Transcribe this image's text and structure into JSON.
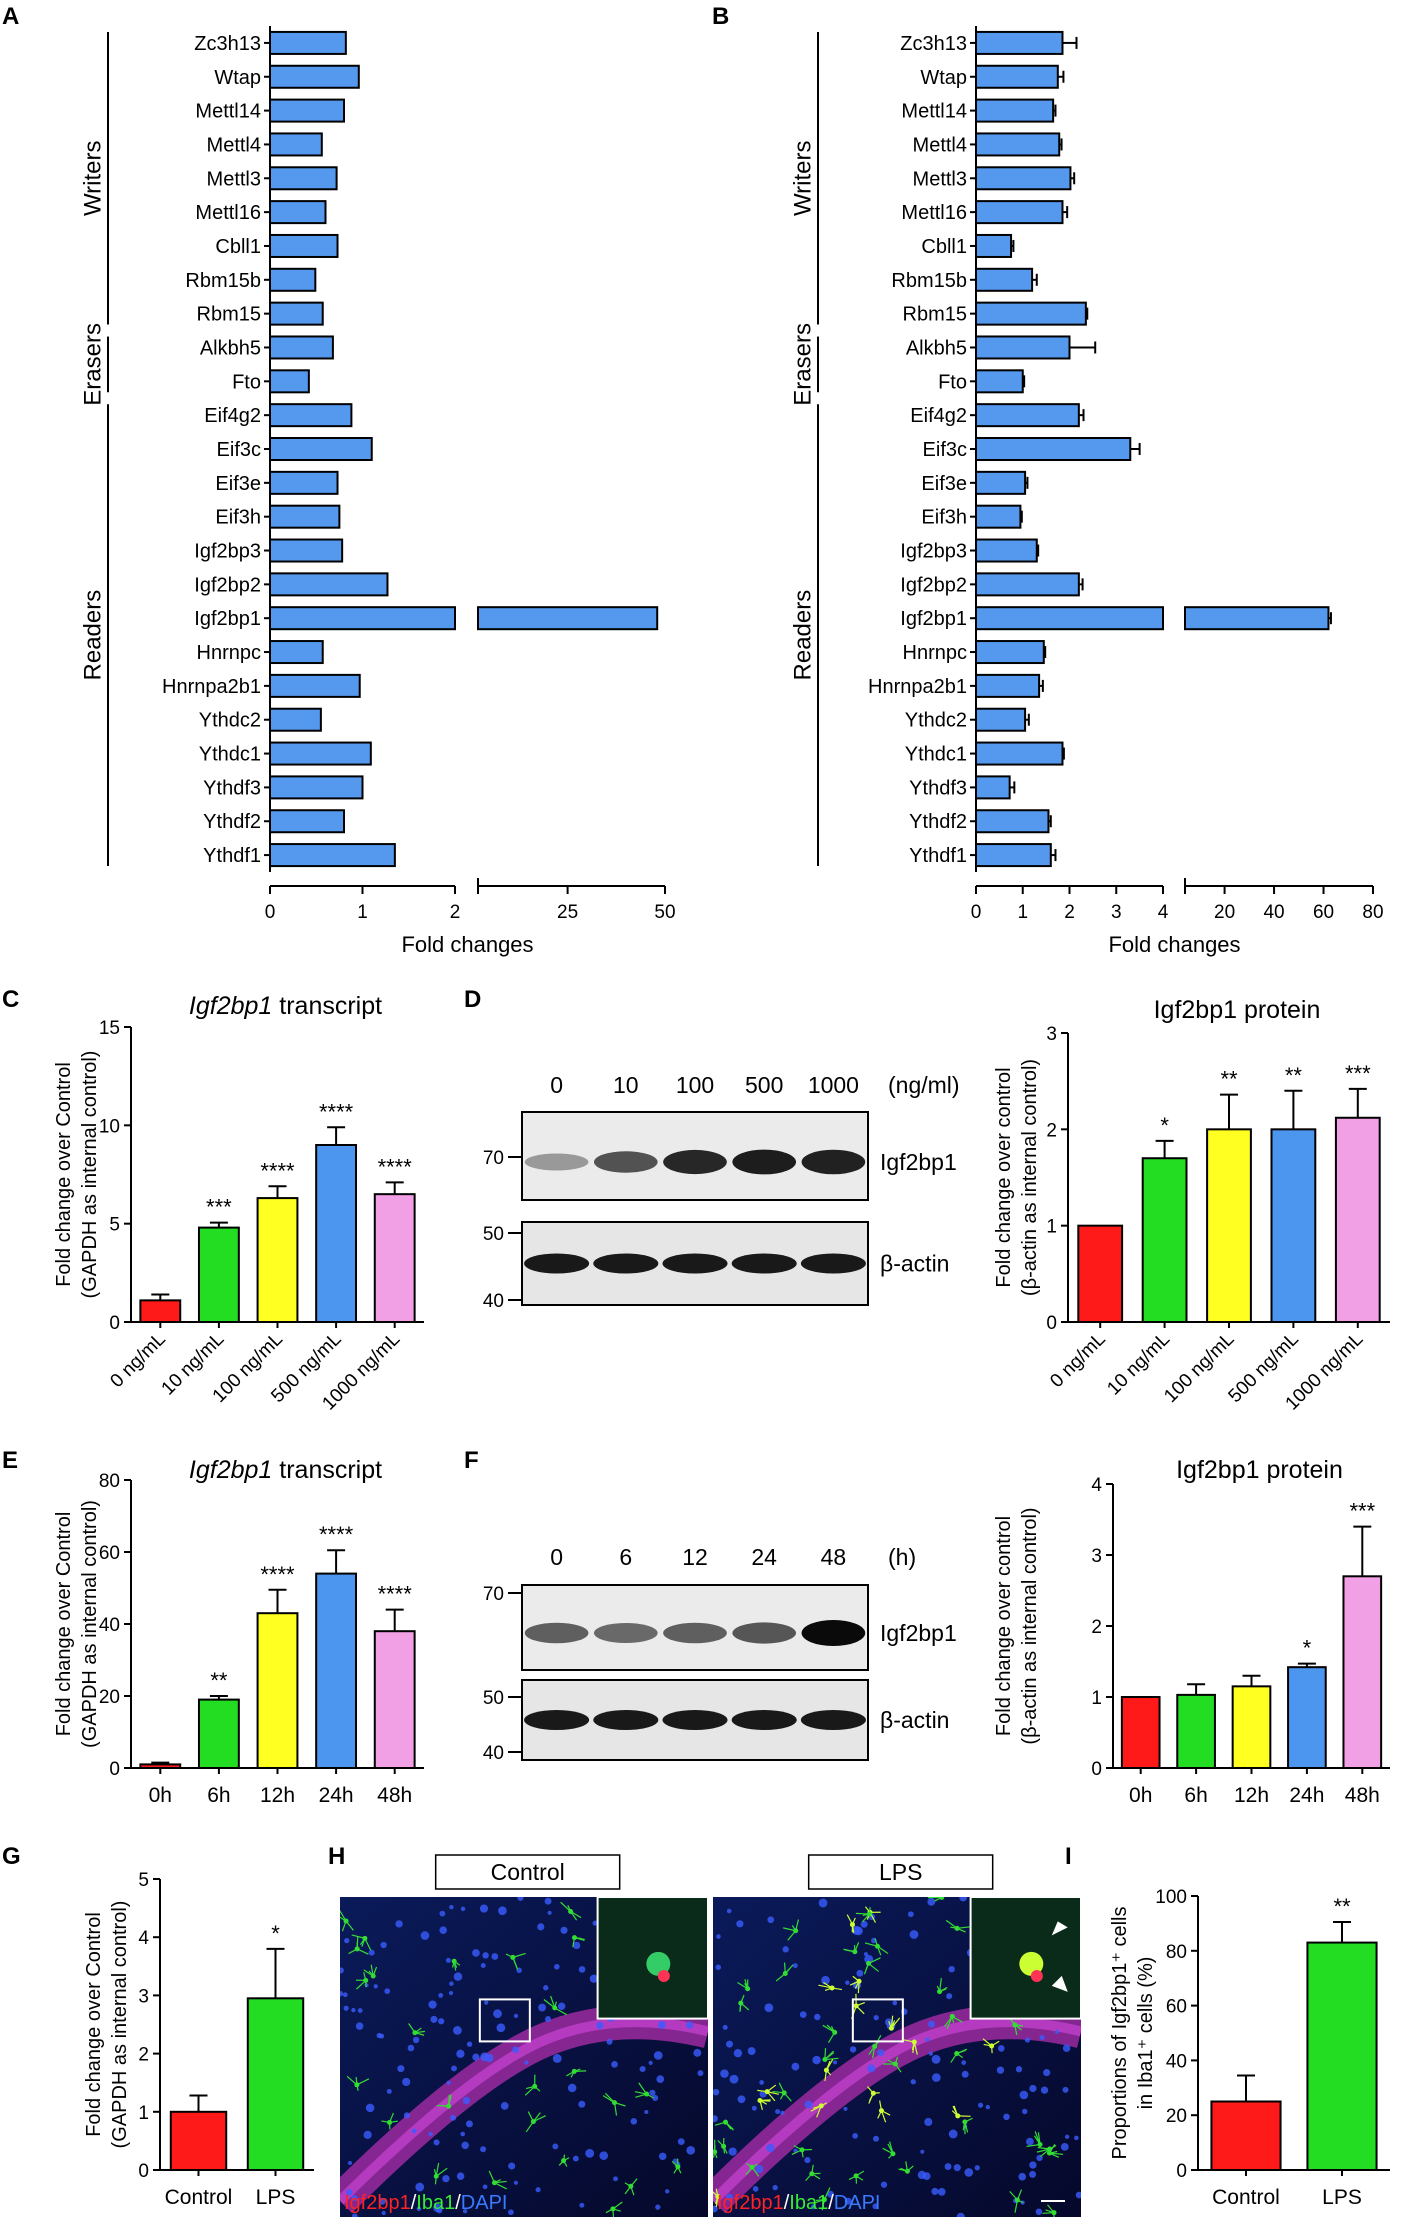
{
  "colors": {
    "blue": "#5599ee",
    "red": "#ff1a1a",
    "green": "#22dd22",
    "yellow": "#ffff22",
    "lightblue": "#4d96f0",
    "pink": "#f2a0e6",
    "ink": "#000000"
  },
  "panels": {
    "A": "A",
    "B": "B",
    "C": "C",
    "D": "D",
    "E": "E",
    "F": "F",
    "G": "G",
    "H": "H",
    "I": "I"
  },
  "common": {
    "genes": [
      "Zc3h13",
      "Wtap",
      "Mettl14",
      "Mettl4",
      "Mettl3",
      "Mettl16",
      "Cbll1",
      "Rbm15b",
      "Rbm15",
      "Alkbh5",
      "Fto",
      "Eif4g2",
      "Eif3c",
      "Eif3e",
      "Eif3h",
      "Igf2bp3",
      "Igf2bp2",
      "Igf2bp1",
      "Hnrnpc",
      "Hnrnpa2b1",
      "Ythdc2",
      "Ythdc1",
      "Ythdf3",
      "Ythdf2",
      "Ythdf1"
    ],
    "groups": [
      "Writers",
      "Erasers",
      "Readers"
    ],
    "fold_changes": "Fold changes",
    "gapdh_ylabel_1": "Fold change over Control",
    "gapdh_ylabel_2": "(GAPDH as internal control)",
    "actin_ylabel_1": "Fold change over control",
    "actin_ylabel_2": "(β-actin as internal control)",
    "transcript_gene": "Igf2bp1",
    "transcript_word": "transcript",
    "protein_title": "Igf2bp1 protein"
  },
  "chart_data": [
    {
      "id": "A",
      "type": "bar",
      "orientation": "horizontal",
      "broken_axis": true,
      "categories": [
        "Zc3h13",
        "Wtap",
        "Mettl14",
        "Mettl4",
        "Mettl3",
        "Mettl16",
        "Cbll1",
        "Rbm15b",
        "Rbm15",
        "Alkbh5",
        "Fto",
        "Eif4g2",
        "Eif3c",
        "Eif3e",
        "Eif3h",
        "Igf2bp3",
        "Igf2bp2",
        "Igf2bp1",
        "Hnrnpc",
        "Hnrnpa2b1",
        "Ythdc2",
        "Ythdc1",
        "Ythdf3",
        "Ythdf2",
        "Ythdf1"
      ],
      "values": [
        0.82,
        0.96,
        0.8,
        0.56,
        0.72,
        0.6,
        0.73,
        0.49,
        0.57,
        0.68,
        0.42,
        0.88,
        1.1,
        0.73,
        0.75,
        0.78,
        1.27,
        48,
        0.57,
        0.97,
        0.55,
        1.09,
        1.0,
        0.8,
        1.35
      ],
      "xlabel": "Fold changes",
      "axis_segment_1": {
        "range": [
          0,
          2
        ],
        "ticks": [
          0,
          1,
          2
        ]
      },
      "axis_segment_2": {
        "range": [
          2,
          50
        ],
        "ticks": [
          25,
          50
        ]
      }
    },
    {
      "id": "B",
      "type": "bar",
      "orientation": "horizontal",
      "broken_axis": true,
      "categories": [
        "Zc3h13",
        "Wtap",
        "Mettl14",
        "Mettl4",
        "Mettl3",
        "Mettl16",
        "Cbll1",
        "Rbm15b",
        "Rbm15",
        "Alkbh5",
        "Fto",
        "Eif4g2",
        "Eif3c",
        "Eif3e",
        "Eif3h",
        "Igf2bp3",
        "Igf2bp2",
        "Igf2bp1",
        "Hnrnpc",
        "Hnrnpa2b1",
        "Ythdc2",
        "Ythdc1",
        "Ythdf3",
        "Ythdf2",
        "Ythdf1"
      ],
      "values": [
        1.85,
        1.75,
        1.65,
        1.78,
        2.02,
        1.85,
        0.75,
        1.2,
        2.35,
        2.0,
        1.0,
        2.2,
        3.3,
        1.05,
        0.95,
        1.3,
        2.2,
        62,
        1.45,
        1.35,
        1.05,
        1.85,
        0.72,
        1.55,
        1.6
      ],
      "errors": [
        0.3,
        0.12,
        0.05,
        0.05,
        0.08,
        0.1,
        0.05,
        0.1,
        0.03,
        0.55,
        0.03,
        0.1,
        0.2,
        0.05,
        0.03,
        0.03,
        0.08,
        1.0,
        0.03,
        0.08,
        0.08,
        0.03,
        0.1,
        0.05,
        0.1
      ],
      "xlabel": "Fold changes",
      "axis_segment_1": {
        "range": [
          0,
          4
        ],
        "ticks": [
          0,
          1,
          2,
          3,
          4
        ]
      },
      "axis_segment_2": {
        "range": [
          4,
          80
        ],
        "ticks": [
          20,
          40,
          60,
          80
        ]
      }
    },
    {
      "id": "C",
      "type": "bar",
      "title_italic": "Igf2bp1",
      "title_rest": "transcript",
      "categories": [
        "0 ng/mL",
        "10 ng/mL",
        "100 ng/mL",
        "500 ng/mL",
        "1000 ng/mL"
      ],
      "values": [
        1.1,
        4.8,
        6.3,
        9.0,
        6.5
      ],
      "errors": [
        0.3,
        0.25,
        0.6,
        0.9,
        0.6
      ],
      "significance": [
        "",
        "***",
        "****",
        "****",
        "****"
      ],
      "ylabel": [
        "Fold change over Control",
        "(GAPDH as internal control)"
      ],
      "ylim": [
        0,
        15
      ],
      "yticks": [
        0,
        5,
        10,
        15
      ]
    },
    {
      "id": "D",
      "type": "bar",
      "title": "Igf2bp1 protein",
      "categories": [
        "0 ng/mL",
        "10 ng/mL",
        "100 ng/mL",
        "500 ng/mL",
        "1000 ng/mL"
      ],
      "values": [
        1.0,
        1.7,
        2.0,
        2.0,
        2.12
      ],
      "errors": [
        0,
        0.18,
        0.36,
        0.4,
        0.3
      ],
      "significance": [
        "",
        "*",
        "**",
        "**",
        "***"
      ],
      "ylabel": [
        "Fold change over control",
        "(β-actin as internal control)"
      ],
      "ylim": [
        0,
        3
      ],
      "yticks": [
        0,
        1,
        2,
        3
      ]
    },
    {
      "id": "E",
      "type": "bar",
      "title_italic": "Igf2bp1",
      "title_rest": "transcript",
      "categories": [
        "0h",
        "6h",
        "12h",
        "24h",
        "48h"
      ],
      "values": [
        1.0,
        19.0,
        43.0,
        54.0,
        38.0
      ],
      "errors": [
        0.5,
        1.0,
        6.5,
        6.5,
        6.0
      ],
      "significance": [
        "",
        "**",
        "****",
        "****",
        "****"
      ],
      "ylabel": [
        "Fold change over Control",
        "(GAPDH as internal control)"
      ],
      "ylim": [
        0,
        80
      ],
      "yticks": [
        0,
        20,
        40,
        60,
        80
      ]
    },
    {
      "id": "F",
      "type": "bar",
      "title": "Igf2bp1 protein",
      "categories": [
        "0h",
        "6h",
        "12h",
        "24h",
        "48h"
      ],
      "values": [
        1.0,
        1.03,
        1.15,
        1.42,
        2.7
      ],
      "errors": [
        0,
        0.15,
        0.15,
        0.05,
        0.7
      ],
      "significance": [
        "",
        "",
        "",
        "*",
        "***"
      ],
      "ylabel": [
        "Fold change over control",
        "(β-actin as internal control)"
      ],
      "ylim": [
        0,
        4
      ],
      "yticks": [
        0,
        1,
        2,
        3,
        4
      ]
    },
    {
      "id": "G",
      "type": "bar",
      "categories": [
        "Control",
        "LPS"
      ],
      "values": [
        1.0,
        2.95
      ],
      "errors": [
        0.28,
        0.85
      ],
      "significance": [
        "",
        "*"
      ],
      "ylabel": [
        "Fold change over Control",
        "(GAPDH as internal control)"
      ],
      "ylim": [
        0,
        5
      ],
      "yticks": [
        0,
        1,
        2,
        3,
        4,
        5
      ]
    },
    {
      "id": "I",
      "type": "bar",
      "categories": [
        "Control",
        "LPS"
      ],
      "values": [
        25.0,
        83.0
      ],
      "errors": [
        9.5,
        7.5
      ],
      "significance": [
        "",
        "**"
      ],
      "ylabel": [
        "Proportions of Igf2bp1⁺ cells",
        "in Iba1⁺ cells (%)"
      ],
      "ylim": [
        0,
        100
      ],
      "yticks": [
        0,
        20,
        40,
        60,
        80,
        100
      ]
    }
  ],
  "blots": {
    "D": {
      "lanes": [
        "0",
        "10",
        "100",
        "500",
        "1000"
      ],
      "unit": "(ng/ml)",
      "band_top": "Igf2bp1",
      "band_bottom": "β-actin",
      "markers": [
        "70",
        "50",
        "40"
      ],
      "top_intensity": [
        0.25,
        0.62,
        0.85,
        0.9,
        0.88
      ]
    },
    "F": {
      "lanes": [
        "0",
        "6",
        "12",
        "24",
        "48"
      ],
      "unit": "(h)",
      "band_top": "Igf2bp1",
      "band_bottom": "β-actin",
      "markers": [
        "70",
        "50",
        "40"
      ],
      "top_intensity": [
        0.55,
        0.5,
        0.55,
        0.6,
        1.0
      ]
    }
  },
  "micro": {
    "control": "Control",
    "lps": "LPS",
    "legend": [
      "Igf2bp1",
      "/",
      "Iba1",
      "/",
      "DAPI"
    ]
  }
}
